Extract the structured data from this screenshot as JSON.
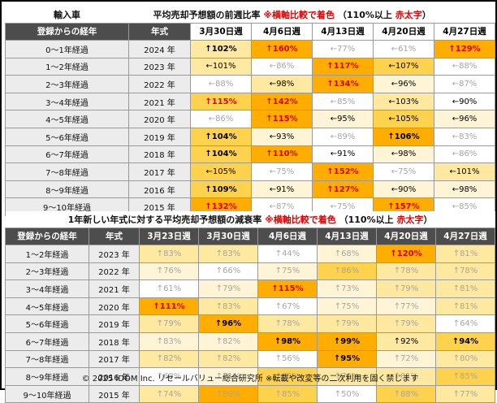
{
  "t1": {
    "label": "輸入車",
    "title_main": "平均売却予想額の前週比率",
    "title_note": "※横軸比較で着色",
    "title_paren_open": "（110%以上",
    "title_red": "赤太字",
    "title_paren_close": "）",
    "col_age": "登録からの経年",
    "col_year": "年式",
    "weeks": [
      "3月30日週",
      "4月6日週",
      "4月13日週",
      "4月20日週",
      "4月27日週"
    ],
    "rows": [
      {
        "age": "0～1年経過",
        "year": "2024 年",
        "cells": [
          [
            "↑102%",
            "c2",
            "hi"
          ],
          [
            "↑160%",
            "c4",
            "red"
          ],
          [
            "←77%",
            "c0",
            "grey"
          ],
          [
            "←61%",
            "c0",
            "grey"
          ],
          [
            "↑129%",
            "c4",
            "red"
          ]
        ]
      },
      {
        "age": "1～2年経過",
        "year": "2023 年",
        "cells": [
          [
            "←101%",
            "c2",
            "dark"
          ],
          [
            "←86%",
            "c0",
            "grey"
          ],
          [
            "↑117%",
            "c4",
            "red"
          ],
          [
            "←107%",
            "c3",
            "dark"
          ],
          [
            "←88%",
            "c0",
            "grey"
          ]
        ]
      },
      {
        "age": "2～3年経過",
        "year": "2022 年",
        "cells": [
          [
            "←88%",
            "c0",
            "grey"
          ],
          [
            "←98%",
            "c2",
            "dark"
          ],
          [
            "↑134%",
            "c4",
            "red"
          ],
          [
            "←96%",
            "c1",
            "dark"
          ],
          [
            "←87%",
            "c0",
            "grey"
          ]
        ]
      },
      {
        "age": "3～4年経過",
        "year": "2021 年",
        "cells": [
          [
            "↑115%",
            "c3",
            "red"
          ],
          [
            "↑142%",
            "c4",
            "red"
          ],
          [
            "←85%",
            "c0",
            "grey"
          ],
          [
            "←103%",
            "c2",
            "dark"
          ],
          [
            "←90%",
            "c0",
            "dark"
          ]
        ]
      },
      {
        "age": "4～5年経過",
        "year": "2020 年",
        "cells": [
          [
            "←86%",
            "c0",
            "grey"
          ],
          [
            "↑115%",
            "c4",
            "red"
          ],
          [
            "←95%",
            "c1",
            "dark"
          ],
          [
            "←105%",
            "c3",
            "dark"
          ],
          [
            "←96%",
            "c1",
            "dark"
          ]
        ]
      },
      {
        "age": "5～6年経過",
        "year": "2019 年",
        "cells": [
          [
            "↑104%",
            "c3",
            "hi"
          ],
          [
            "←93%",
            "c1",
            "dark"
          ],
          [
            "←89%",
            "c0",
            "grey"
          ],
          [
            "↑106%",
            "c4",
            "hi"
          ],
          [
            "←83%",
            "c0",
            "grey"
          ]
        ]
      },
      {
        "age": "6～7年経過",
        "year": "2018 年",
        "cells": [
          [
            "↑104%",
            "c3",
            "hi"
          ],
          [
            "↑110%",
            "c4",
            "red"
          ],
          [
            "←91%",
            "c0",
            "dark"
          ],
          [
            "←98%",
            "c1",
            "dark"
          ],
          [
            "←86%",
            "c0",
            "grey"
          ]
        ]
      },
      {
        "age": "7～8年経過",
        "year": "2017 年",
        "cells": [
          [
            "←105%",
            "c3",
            "dark"
          ],
          [
            "←75%",
            "c0",
            "grey"
          ],
          [
            "↑152%",
            "c4",
            "red"
          ],
          [
            "←75%",
            "c0",
            "grey"
          ],
          [
            "←101%",
            "c2",
            "dark"
          ]
        ]
      },
      {
        "age": "8～9年経過",
        "year": "2016 年",
        "cells": [
          [
            "↑109%",
            "c3",
            "hi"
          ],
          [
            "←91%",
            "c1",
            "dark"
          ],
          [
            "↑127%",
            "c4",
            "red"
          ],
          [
            "←90%",
            "c1",
            "dark"
          ],
          [
            "←98%",
            "c1",
            "dark"
          ]
        ]
      },
      {
        "age": "9～10年経過",
        "year": "2015 年",
        "cells": [
          [
            "↑132%",
            "c4",
            "red"
          ],
          [
            "←87%",
            "c0",
            "grey"
          ],
          [
            "←75%",
            "c0",
            "grey"
          ],
          [
            "↑157%",
            "c4",
            "red"
          ],
          [
            "←85%",
            "c0",
            "grey"
          ]
        ]
      }
    ]
  },
  "t2": {
    "title_main": "1年新しい年式に対する平均売却予想額の減衰率",
    "title_note": "※横軸比較で着色",
    "title_paren_open": "（110%以上",
    "title_red": "赤太字",
    "title_paren_close": "）",
    "col_age": "登録からの経年",
    "col_year": "年式",
    "weeks": [
      "3月23日週",
      "3月30日週",
      "4月6日週",
      "4月13日週",
      "4月20日週",
      "4月27日週"
    ],
    "rows": [
      {
        "age": "1～2年経過",
        "year": "2023 年",
        "cells": [
          [
            "↑83%",
            "c2",
            "grey"
          ],
          [
            "↑83%",
            "c2",
            "grey"
          ],
          [
            "↑44%",
            "c0",
            "grey"
          ],
          [
            "↑68%",
            "c1",
            "grey"
          ],
          [
            "↑120%",
            "c4",
            "red"
          ],
          [
            "↑81%",
            "c2",
            "grey"
          ]
        ]
      },
      {
        "age": "2～3年経過",
        "year": "2022 年",
        "cells": [
          [
            "↑76%",
            "c1",
            "grey"
          ],
          [
            "↑66%",
            "c0",
            "grey"
          ],
          [
            "↑75%",
            "c1",
            "grey"
          ],
          [
            "↑86%",
            "c3",
            "grey"
          ],
          [
            "↑78%",
            "c2",
            "grey"
          ],
          [
            "↑78%",
            "c2",
            "grey"
          ]
        ]
      },
      {
        "age": "3～4年経過",
        "year": "2021 年",
        "cells": [
          [
            "↑61%",
            "c0",
            "grey"
          ],
          [
            "↑79%",
            "c1",
            "grey"
          ],
          [
            "↑115%",
            "c4",
            "red"
          ],
          [
            "↑73%",
            "c1",
            "grey"
          ],
          [
            "↑79%",
            "c2",
            "grey"
          ],
          [
            "↑81%",
            "c2",
            "grey"
          ]
        ]
      },
      {
        "age": "4～5年経過",
        "year": "2020 年",
        "cells": [
          [
            "↑111%",
            "c4",
            "red"
          ],
          [
            "↑83%",
            "c2",
            "grey"
          ],
          [
            "↑67%",
            "c0",
            "grey"
          ],
          [
            "↑75%",
            "c1",
            "grey"
          ],
          [
            "↑77%",
            "c1",
            "grey"
          ],
          [
            "↑81%",
            "c2",
            "grey"
          ]
        ]
      },
      {
        "age": "5～6年経過",
        "year": "2019 年",
        "cells": [
          [
            "↑79%",
            "c2",
            "grey"
          ],
          [
            "↑96%",
            "c4",
            "hi"
          ],
          [
            "↑78%",
            "c2",
            "grey"
          ],
          [
            "↑79%",
            "c2",
            "grey"
          ],
          [
            "↑79%",
            "c2",
            "grey"
          ],
          [
            "↑64%",
            "c0",
            "grey"
          ]
        ]
      },
      {
        "age": "6～7年経過",
        "year": "2018 年",
        "cells": [
          [
            "↑83%",
            "c1",
            "grey"
          ],
          [
            "↑82%",
            "c1",
            "grey"
          ],
          [
            "↑98%",
            "c4",
            "hi"
          ],
          [
            "↑99%",
            "c4",
            "hi"
          ],
          [
            "↑92%",
            "c2",
            "dark"
          ],
          [
            "↑94%",
            "c3",
            "hi"
          ]
        ]
      },
      {
        "age": "7～8年経過",
        "year": "2017 年",
        "cells": [
          [
            "↑82%",
            "c2",
            "grey"
          ],
          [
            "↑82%",
            "c2",
            "grey"
          ],
          [
            "↑56%",
            "c0",
            "grey"
          ],
          [
            "↑95%",
            "c4",
            "hi"
          ],
          [
            "↑72%",
            "c1",
            "grey"
          ],
          [
            "↑80%",
            "c2",
            "grey"
          ]
        ]
      },
      {
        "age": "8～9年経過",
        "year": "2016 年",
        "cells": [
          [
            "↑68%",
            "c0",
            "grey"
          ],
          [
            "↑71%",
            "c1",
            "grey"
          ],
          [
            "↑85%",
            "c3",
            "grey"
          ],
          [
            "↑76%",
            "c2",
            "grey"
          ],
          [
            "↑81%",
            "c2",
            "grey"
          ],
          [
            "↑85%",
            "c3",
            "grey"
          ]
        ]
      },
      {
        "age": "9～10年経過",
        "year": "2015 年",
        "cells": [
          [
            "↑74%",
            "c2",
            "grey"
          ],
          [
            "↑89%",
            "c4",
            "grey"
          ],
          [
            "↑85%",
            "c3",
            "grey"
          ],
          [
            "↑50%",
            "c0",
            "grey"
          ],
          [
            "↑88%",
            "c3",
            "grey"
          ],
          [
            "↑77%",
            "c2",
            "grey"
          ]
        ]
      }
    ]
  },
  "footer": "© 2025 IDOM Inc. リセールバリュー総合研究所 ※転載や改変等の二次利用を固く禁じます"
}
